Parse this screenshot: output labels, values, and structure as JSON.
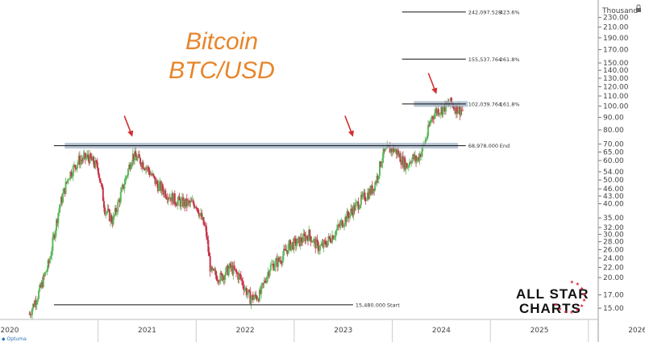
{
  "title_line1": "Bitcoin",
  "title_line2": "BTC/USD",
  "title_color": "#e8852a",
  "unit": "Thousand",
  "brand": "Optuma",
  "logo": {
    "line1": "ALL STAR",
    "line2": "CHARTS",
    "star_color": "#d7263d"
  },
  "colors": {
    "up": "#5cb85c",
    "down": "#c9334a",
    "band": "#9fb0c4",
    "arrow": "#d32f2f"
  },
  "chart_data": {
    "type": "candlestick",
    "scale": "log",
    "ylim": [
      13.5,
      255
    ],
    "y_ticks": [
      15,
      17,
      20,
      22,
      24,
      26,
      28,
      30,
      32,
      35,
      40,
      43,
      46,
      50,
      54,
      60,
      65,
      70,
      80,
      90,
      100,
      110,
      120,
      130,
      140,
      150,
      170,
      190,
      210,
      230
    ],
    "y_tick_labels": [
      "15.00",
      "17.00",
      "20.00",
      "22.00",
      "24.00",
      "26.00",
      "28.00",
      "30.00",
      "32.00",
      "35.00",
      "40.00",
      "43.00",
      "46.00",
      "50.00",
      "54.00",
      "60.00",
      "65.00",
      "70.00",
      "80.00",
      "90.00",
      "100.00",
      "110.00",
      "120.00",
      "130.00",
      "140.00",
      "150.00",
      "170.00",
      "190.00",
      "210.00",
      "230.00"
    ],
    "x_labels": [
      "2020",
      "2021",
      "2022",
      "2023",
      "2024",
      "2025",
      "2026"
    ],
    "x_range": [
      2020.0,
      2026.1
    ],
    "levels": [
      {
        "value": 242.098,
        "price_label": "242,097.528",
        "pct_label": "423.6%",
        "x_from": 2024.1,
        "x_to": 2024.75,
        "band": false
      },
      {
        "value": 155.538,
        "price_label": "155,537.764",
        "pct_label": "261.8%",
        "x_from": 2024.1,
        "x_to": 2024.75,
        "band": false
      },
      {
        "value": 102.04,
        "price_label": "102,039.764",
        "pct_label": "161.8%",
        "x_from": 2024.1,
        "x_to": 2024.75,
        "band": true,
        "band_x_from": 2024.22,
        "band_x_to": 2024.77
      },
      {
        "value": 68.978,
        "price_label": "68,978.000",
        "pct_label": "End",
        "x_from": 2020.55,
        "x_to": 2024.75,
        "band": true,
        "band_x_from": 2020.66,
        "band_x_to": 2024.67
      },
      {
        "value": 15.48,
        "price_label": "15,480.000",
        "pct_label": "Start",
        "x_from": 2020.55,
        "x_to": 2023.6,
        "band": false
      }
    ],
    "arrows": [
      {
        "x": 2021.35,
        "y": 75
      },
      {
        "x": 2023.6,
        "y": 75
      },
      {
        "x": 2024.45,
        "y": 112
      }
    ],
    "price_path": [
      [
        2020.3,
        14.2
      ],
      [
        2020.4,
        17.5
      ],
      [
        2020.5,
        23
      ],
      [
        2020.6,
        38
      ],
      [
        2020.7,
        52
      ],
      [
        2020.8,
        60
      ],
      [
        2020.9,
        62
      ],
      [
        2021.0,
        56
      ],
      [
        2021.07,
        38
      ],
      [
        2021.15,
        34
      ],
      [
        2021.25,
        46
      ],
      [
        2021.35,
        63
      ],
      [
        2021.43,
        60
      ],
      [
        2021.5,
        56
      ],
      [
        2021.6,
        48
      ],
      [
        2021.7,
        44
      ],
      [
        2021.8,
        41
      ],
      [
        2021.9,
        40
      ],
      [
        2022.0,
        40
      ],
      [
        2022.1,
        31
      ],
      [
        2022.15,
        21
      ],
      [
        2022.25,
        20
      ],
      [
        2022.35,
        22
      ],
      [
        2022.45,
        20
      ],
      [
        2022.5,
        18
      ],
      [
        2022.55,
        16.5
      ],
      [
        2022.6,
        16.6
      ],
      [
        2022.65,
        17
      ],
      [
        2022.75,
        22
      ],
      [
        2022.85,
        23.5
      ],
      [
        2022.95,
        27
      ],
      [
        2023.05,
        28
      ],
      [
        2023.15,
        30
      ],
      [
        2023.2,
        28
      ],
      [
        2023.25,
        26.5
      ],
      [
        2023.3,
        27
      ],
      [
        2023.4,
        30
      ],
      [
        2023.5,
        34
      ],
      [
        2023.6,
        38
      ],
      [
        2023.7,
        42
      ],
      [
        2023.8,
        46
      ],
      [
        2023.85,
        52
      ],
      [
        2023.9,
        63
      ],
      [
        2023.95,
        66
      ],
      [
        2024.0,
        67
      ],
      [
        2024.05,
        65
      ],
      [
        2024.1,
        60
      ],
      [
        2024.15,
        57
      ],
      [
        2024.2,
        62
      ],
      [
        2024.25,
        60
      ],
      [
        2024.3,
        66
      ],
      [
        2024.35,
        75
      ],
      [
        2024.4,
        90
      ],
      [
        2024.45,
        96
      ],
      [
        2024.5,
        97
      ],
      [
        2024.55,
        100
      ],
      [
        2024.6,
        103
      ],
      [
        2024.65,
        98
      ],
      [
        2024.72,
        96
      ]
    ]
  }
}
